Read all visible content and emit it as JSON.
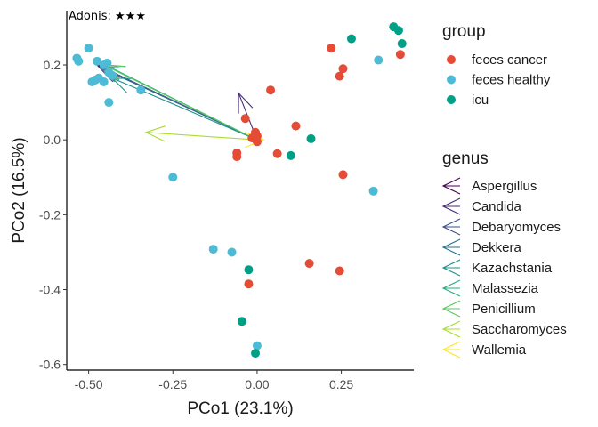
{
  "chart_data": {
    "type": "scatter",
    "xlabel": "PCo1 (23.1%)",
    "ylabel": "PCo2 (16.5%)",
    "xlim": [
      -0.565,
      0.465
    ],
    "ylim": [
      -0.615,
      0.345
    ],
    "xticks": [
      -0.5,
      -0.25,
      0.0,
      0.25
    ],
    "xtick_labels": [
      "-0.50",
      "-0.25",
      "0.00",
      "0.25"
    ],
    "yticks": [
      -0.6,
      -0.4,
      -0.2,
      0.0,
      0.2
    ],
    "ytick_labels": [
      "-0.6",
      "-0.4",
      "-0.2",
      "0.0",
      "0.2"
    ],
    "grid": false,
    "annotation": "Adonis: ★★★",
    "legend_position": "right",
    "group_legend": {
      "title": "group",
      "entries": [
        {
          "name": "feces cancer",
          "color": "#E64B35"
        },
        {
          "name": "feces healthy",
          "color": "#4DBBD5"
        },
        {
          "name": "icu",
          "color": "#00A087"
        }
      ]
    },
    "genus_legend": {
      "title": "genus",
      "entries": [
        {
          "name": "Aspergillus",
          "color": "#440154"
        },
        {
          "name": "Candida",
          "color": "#472D7B"
        },
        {
          "name": "Debaryomyces",
          "color": "#3B528B"
        },
        {
          "name": "Dekkera",
          "color": "#2C728E"
        },
        {
          "name": "Kazachstania",
          "color": "#21908C"
        },
        {
          "name": "Malassezia",
          "color": "#27AD81"
        },
        {
          "name": "Penicillium",
          "color": "#5DC863"
        },
        {
          "name": "Saccharomyces",
          "color": "#AADC32"
        },
        {
          "name": "Wallemia",
          "color": "#FDE725"
        }
      ]
    },
    "series": [
      {
        "name": "feces cancer",
        "points": [
          [
            0.22,
            0.245
          ],
          [
            0.255,
            0.19
          ],
          [
            0.245,
            0.17
          ],
          [
            0.425,
            0.228
          ],
          [
            0.04,
            0.133
          ],
          [
            -0.035,
            0.057
          ],
          [
            -0.005,
            0.02
          ],
          [
            0.0,
            -0.005
          ],
          [
            0.0,
            0.01
          ],
          [
            -0.015,
            0.005
          ],
          [
            0.115,
            0.037
          ],
          [
            0.06,
            -0.037
          ],
          [
            -0.06,
            -0.035
          ],
          [
            -0.06,
            -0.045
          ],
          [
            0.255,
            -0.093
          ],
          [
            0.155,
            -0.33
          ],
          [
            0.245,
            -0.35
          ],
          [
            -0.025,
            -0.385
          ]
        ]
      },
      {
        "name": "feces healthy",
        "points": [
          [
            -0.5,
            0.245
          ],
          [
            -0.535,
            0.218
          ],
          [
            -0.53,
            0.21
          ],
          [
            -0.475,
            0.21
          ],
          [
            -0.455,
            0.2
          ],
          [
            -0.445,
            0.205
          ],
          [
            -0.47,
            0.165
          ],
          [
            -0.49,
            0.155
          ],
          [
            -0.48,
            0.16
          ],
          [
            -0.455,
            0.155
          ],
          [
            -0.43,
            0.172
          ],
          [
            -0.44,
            0.18
          ],
          [
            -0.345,
            0.133
          ],
          [
            -0.44,
            0.1
          ],
          [
            -0.25,
            -0.1
          ],
          [
            0.36,
            0.213
          ],
          [
            0.345,
            -0.137
          ],
          [
            -0.13,
            -0.292
          ],
          [
            -0.075,
            -0.3
          ],
          [
            0.0,
            -0.55
          ]
        ]
      },
      {
        "name": "icu",
        "points": [
          [
            0.405,
            0.302
          ],
          [
            0.42,
            0.292
          ],
          [
            0.43,
            0.257
          ],
          [
            0.28,
            0.27
          ],
          [
            0.16,
            0.003
          ],
          [
            0.1,
            -0.042
          ],
          [
            -0.025,
            -0.347
          ],
          [
            -0.045,
            -0.485
          ],
          [
            -0.005,
            -0.57
          ]
        ]
      }
    ],
    "arrows": [
      {
        "name": "Aspergillus",
        "x": -0.475,
        "y": 0.2
      },
      {
        "name": "Candida",
        "x": -0.055,
        "y": 0.125
      },
      {
        "name": "Debaryomyces",
        "x": -0.47,
        "y": 0.195
      },
      {
        "name": "Dekkera",
        "x": -0.465,
        "y": 0.195
      },
      {
        "name": "Kazachstania",
        "x": -0.43,
        "y": 0.165
      },
      {
        "name": "Malassezia",
        "x": -0.45,
        "y": 0.2
      },
      {
        "name": "Penicillium",
        "x": -0.455,
        "y": 0.2
      },
      {
        "name": "Saccharomyces",
        "x": -0.33,
        "y": 0.02
      },
      {
        "name": "Wallemia",
        "x": 0.02,
        "y": 0.0
      }
    ]
  }
}
